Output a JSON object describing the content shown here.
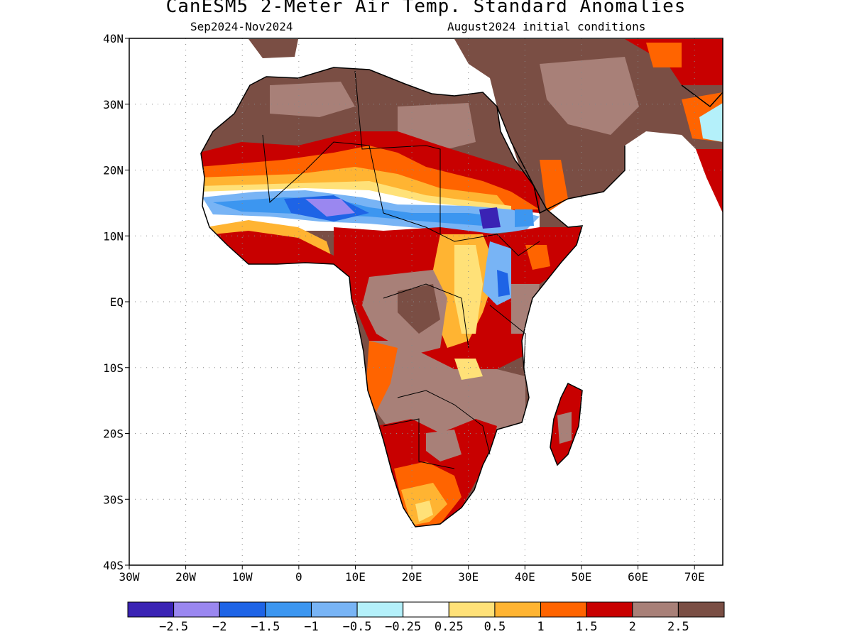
{
  "header": {
    "title": "CanESM5 2-Meter Air Temp. Standard Anomalies",
    "period": "Sep2024-Nov2024",
    "init": "August2024 initial conditions"
  },
  "axes": {
    "lat_labels": [
      "40N",
      "30N",
      "20N",
      "10N",
      "EQ",
      "10S",
      "20S",
      "30S",
      "40S"
    ],
    "lon_labels": [
      "30W",
      "20W",
      "10W",
      "0",
      "10E",
      "20E",
      "30E",
      "40E",
      "50E",
      "60E",
      "70E"
    ],
    "lat_range": [
      -40,
      40
    ],
    "lon_range": [
      -30,
      75
    ],
    "grid": "dotted"
  },
  "colorbar": {
    "colors": [
      "#3a23b4",
      "#9a87f0",
      "#1e64e6",
      "#3c96f0",
      "#78b4f5",
      "#b4f0fa",
      "#ffffff",
      "#ffe178",
      "#ffb432",
      "#ff6400",
      "#c80000",
      "#a88078",
      "#7a4e44"
    ],
    "labels": [
      "-2.5",
      "-2",
      "-1.5",
      "-1",
      "-0.5",
      "-0.25",
      "0.25",
      "0.5",
      "1",
      "1.5",
      "2",
      "2.5"
    ]
  },
  "map_regions": [
    {
      "name": "north-africa-anomaly",
      "category": "2.5"
    },
    {
      "name": "sahel-cold-band",
      "category": "-1.5"
    },
    {
      "name": "ethiopia-cold-core",
      "category": "-2.5"
    },
    {
      "name": "central-africa-anomaly",
      "category": "2.5"
    },
    {
      "name": "southern-africa-warm",
      "category": "2"
    },
    {
      "name": "madagascar-anomaly",
      "category": "2"
    }
  ]
}
